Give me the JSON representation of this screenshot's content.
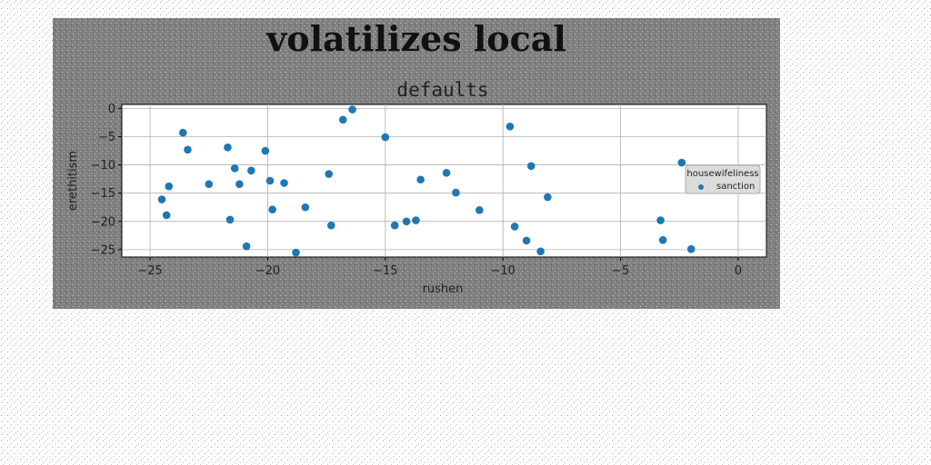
{
  "figure": {
    "title": "volatilizes local",
    "background": "#808080",
    "page_background": "#ffffff"
  },
  "chart_data": {
    "type": "scatter",
    "title": "defaults",
    "xlabel": "rushen",
    "ylabel": "erethitism",
    "xlim": [
      -26.2,
      1.2
    ],
    "ylim": [
      -26.3,
      0.7
    ],
    "xticks": [
      -25,
      -20,
      -15,
      -10,
      -5,
      0
    ],
    "yticks": [
      0,
      -5,
      -10,
      -15,
      -20,
      -25
    ],
    "grid": true,
    "legend": {
      "title": "housewifeliness",
      "position": "right",
      "entries": [
        "sanction"
      ]
    },
    "series": [
      {
        "name": "sanction",
        "color": "#1f77b4",
        "marker": "circle",
        "x": [
          -24.5,
          -24.3,
          -24.2,
          -23.6,
          -23.4,
          -22.5,
          -21.7,
          -21.6,
          -21.4,
          -21.2,
          -20.9,
          -20.7,
          -20.1,
          -19.9,
          -19.8,
          -19.3,
          -18.8,
          -18.4,
          -17.4,
          -17.3,
          -16.8,
          -16.4,
          -15.0,
          -14.6,
          -14.1,
          -13.7,
          -13.5,
          -12.4,
          -12.0,
          -11.0,
          -9.7,
          -9.5,
          -9.0,
          -8.8,
          -8.4,
          -8.1,
          -3.3,
          -3.2,
          -2.4,
          -2.0
        ],
        "y": [
          -16.1,
          -18.9,
          -13.8,
          -4.3,
          -7.3,
          -13.4,
          -6.9,
          -19.7,
          -10.6,
          -13.4,
          -24.4,
          -11.0,
          -7.5,
          -12.8,
          -17.9,
          -13.2,
          -25.5,
          -17.5,
          -11.6,
          -20.7,
          -2.0,
          -0.2,
          -5.1,
          -20.7,
          -20.0,
          -19.8,
          -12.6,
          -11.4,
          -14.9,
          -18.0,
          -3.2,
          -20.9,
          -23.4,
          -10.2,
          -25.3,
          -15.7,
          -19.8,
          -23.3,
          -9.6,
          -24.9
        ]
      }
    ]
  }
}
